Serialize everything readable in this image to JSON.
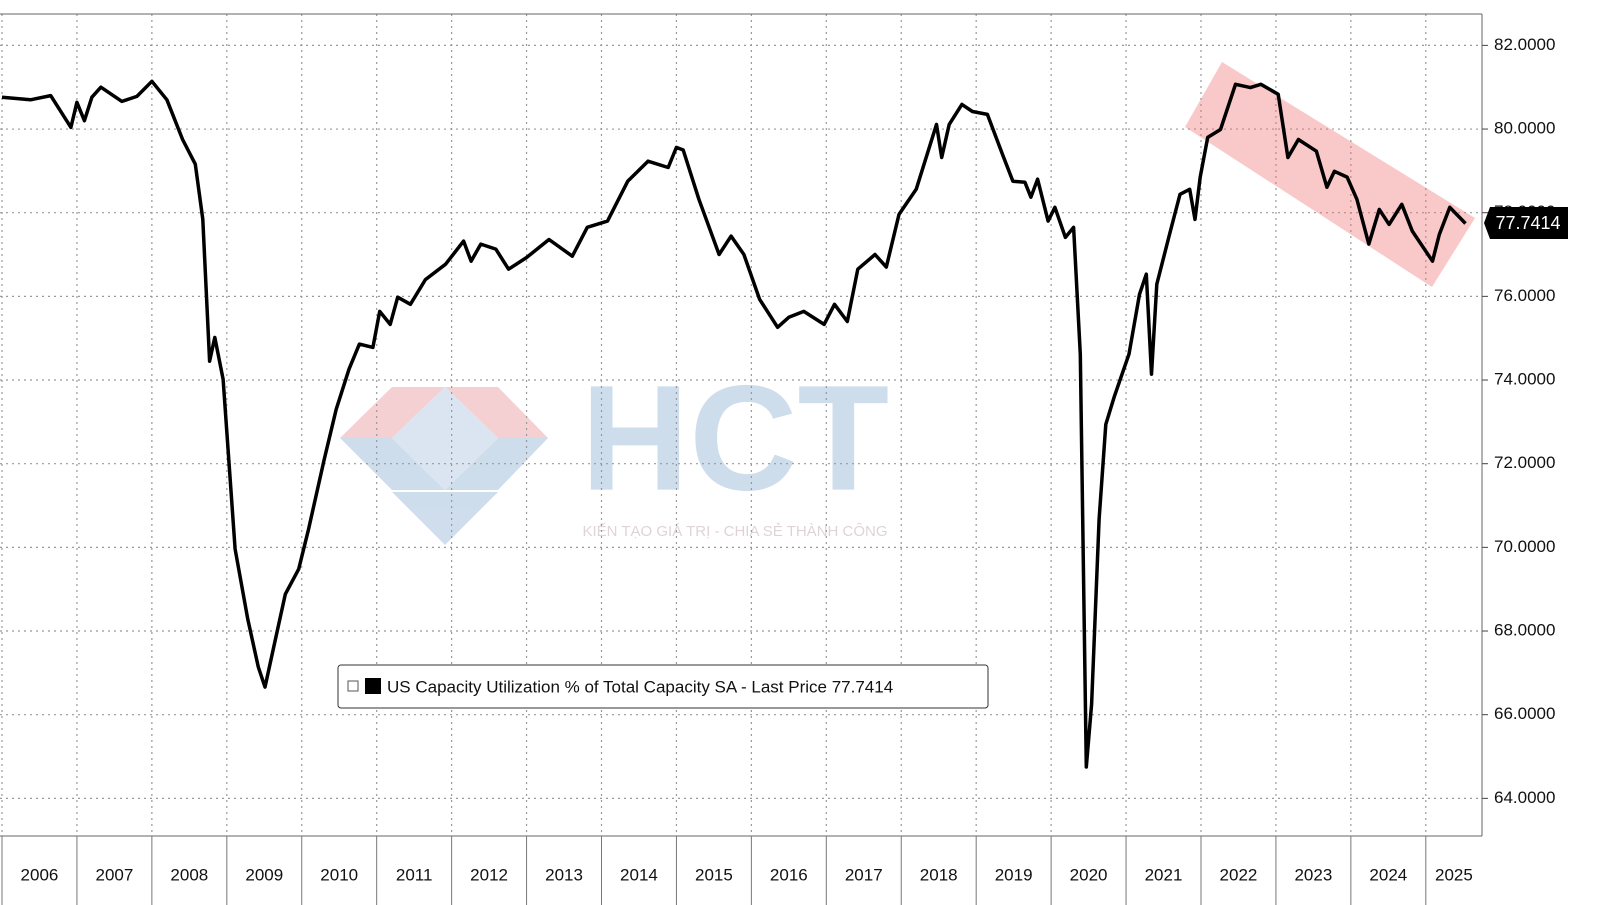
{
  "chart_data": {
    "type": "line",
    "series": [
      {
        "name": "US Capacity Utilization % of Total Capacity SA - Last Price 77.7414",
        "color": "#000000",
        "x": [
          2006.0,
          2006.38,
          2006.65,
          2006.92,
          2007.0,
          2007.1,
          2007.2,
          2007.32,
          2007.6,
          2007.8,
          2008.0,
          2008.2,
          2008.41,
          2008.58,
          2008.68,
          2008.77,
          2008.84,
          2008.95,
          2009.11,
          2009.28,
          2009.42,
          2009.51,
          2009.62,
          2009.78,
          2009.96,
          2010.09,
          2010.3,
          2010.46,
          2010.63,
          2010.77,
          2010.95,
          2011.04,
          2011.18,
          2011.28,
          2011.45,
          2011.65,
          2011.92,
          2012.16,
          2012.26,
          2012.39,
          2012.59,
          2012.76,
          2013.0,
          2013.3,
          2013.61,
          2013.81,
          2014.08,
          2014.35,
          2014.62,
          2014.89,
          2015.0,
          2015.09,
          2015.3,
          2015.57,
          2015.73,
          2015.9,
          2016.11,
          2016.35,
          2016.5,
          2016.7,
          2016.97,
          2017.11,
          2017.28,
          2017.42,
          2017.65,
          2017.8,
          2017.97,
          2018.2,
          2018.47,
          2018.54,
          2018.64,
          2018.81,
          2018.95,
          2019.15,
          2019.35,
          2019.49,
          2019.65,
          2019.73,
          2019.82,
          2019.96,
          2020.05,
          2020.19,
          2020.3,
          2020.39,
          2020.47,
          2020.54,
          2020.64,
          2020.73,
          2020.84,
          2021.04,
          2021.18,
          2021.27,
          2021.34,
          2021.41,
          2021.58,
          2021.72,
          2021.85,
          2021.92,
          2021.99,
          2022.09,
          2022.26,
          2022.46,
          2022.66,
          2022.8,
          2023.03,
          2023.16,
          2023.3,
          2023.54,
          2023.68,
          2023.78,
          2023.95,
          2024.08,
          2024.24,
          2024.38,
          2024.51,
          2024.68,
          2024.82,
          2025.09,
          2025.18,
          2025.32,
          2025.53
        ],
        "values": [
          80.76,
          80.7,
          80.8,
          80.04,
          80.64,
          80.2,
          80.76,
          81.0,
          80.66,
          80.78,
          81.14,
          80.7,
          79.75,
          79.16,
          77.84,
          74.45,
          75.02,
          74.02,
          69.96,
          68.28,
          67.14,
          66.66,
          67.57,
          68.88,
          69.48,
          70.43,
          72.1,
          73.3,
          74.26,
          74.86,
          74.78,
          75.64,
          75.33,
          75.98,
          75.81,
          76.4,
          76.77,
          77.32,
          76.84,
          77.25,
          77.13,
          76.65,
          76.93,
          77.36,
          76.96,
          77.65,
          77.8,
          78.75,
          79.23,
          79.08,
          79.56,
          79.5,
          78.32,
          77.0,
          77.44,
          77.0,
          75.93,
          75.26,
          75.5,
          75.64,
          75.33,
          75.81,
          75.4,
          76.65,
          77.0,
          76.7,
          77.96,
          78.56,
          80.11,
          79.32,
          80.11,
          80.59,
          80.42,
          80.35,
          79.4,
          78.75,
          78.73,
          78.37,
          78.8,
          77.8,
          78.13,
          77.41,
          77.65,
          74.62,
          64.75,
          66.25,
          70.67,
          72.94,
          73.59,
          74.62,
          76.05,
          76.53,
          74.14,
          76.29,
          77.48,
          78.44,
          78.56,
          77.84,
          78.85,
          79.8,
          79.99,
          81.07,
          80.99,
          81.07,
          80.83,
          79.32,
          79.75,
          79.47,
          78.61,
          78.99,
          78.85,
          78.32,
          77.25,
          78.08,
          77.72,
          78.2,
          77.56,
          76.84,
          77.48,
          78.13,
          77.7414
        ]
      }
    ],
    "last_price": 77.7414,
    "xlim": [
      2006.0,
      2025.75
    ],
    "xticks": [
      2006,
      2007,
      2008,
      2009,
      2010,
      2011,
      2012,
      2013,
      2014,
      2015,
      2016,
      2017,
      2018,
      2019,
      2020,
      2021,
      2022,
      2023,
      2024,
      2025
    ],
    "ylim": [
      63.1,
      82.75
    ],
    "yticks": [
      {
        "value": 64,
        "label": "64.0000"
      },
      {
        "value": 66,
        "label": "66.0000"
      },
      {
        "value": 68,
        "label": "68.0000"
      },
      {
        "value": 70,
        "label": "70.0000"
      },
      {
        "value": 72,
        "label": "72.0000"
      },
      {
        "value": 74,
        "label": "74.0000"
      },
      {
        "value": 76,
        "label": "76.0000"
      },
      {
        "value": 78,
        "label": "78.0000"
      },
      {
        "value": 80,
        "label": "80.0000"
      },
      {
        "value": 82,
        "label": "82.0000"
      }
    ],
    "grid": true,
    "watermark": {
      "logo": "HCT",
      "slogan": "KIẾN TẠO GIÁ TRỊ - CHIA SẺ THÀNH CÔNG"
    }
  }
}
